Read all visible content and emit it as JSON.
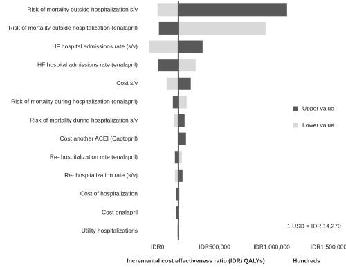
{
  "chart_data": {
    "type": "tornado",
    "categories": [
      "Risk of mortality outside hospitalization s/v",
      "Risk of mortality outside hospitalization (enalapril)",
      "HF hospital admissions rate (s/v)",
      "HF hospital admissions rate (enalapril)",
      "Cost s/v",
      "Risk of mortality during hospitalization (enalapril)",
      "Risk of mortality during hospitalization s/v",
      "Cost another ACEI (Captopril)",
      "Re- hospitalization rate (enalapril)",
      "Re- hospitalization rate (s/v)",
      "Cost of hospitalization",
      "Cost enalapril",
      "Utility hospitalizations"
    ],
    "base_value": 180000,
    "series": [
      {
        "name": "Lower value",
        "color": "#d9d9d9",
        "values": [
          0,
          947000,
          -73000,
          334000,
          79000,
          255000,
          146000,
          180000,
          213000,
          152000,
          194000,
          188000,
          188000
        ]
      },
      {
        "name": "Upper value",
        "color": "#595959",
        "values": [
          1135000,
          12000,
          395000,
          6000,
          291000,
          134000,
          237000,
          249000,
          152000,
          219000,
          164000,
          164000,
          176000
        ]
      }
    ],
    "xlim": [
      -150000,
      1500000
    ],
    "xticks": [
      {
        "value": 0,
        "label": "IDR0"
      },
      {
        "value": 500000,
        "label": "IDR500,000"
      },
      {
        "value": 1000000,
        "label": "IDR1,000,000"
      },
      {
        "value": 1500000,
        "label": "IDR1,500,000"
      }
    ],
    "x_label": "Incremental cost effectiveness ratio (IDR/ QALYs)",
    "x_unit": "Hundreds",
    "annotation": "1 USD = IDR 14,270"
  }
}
